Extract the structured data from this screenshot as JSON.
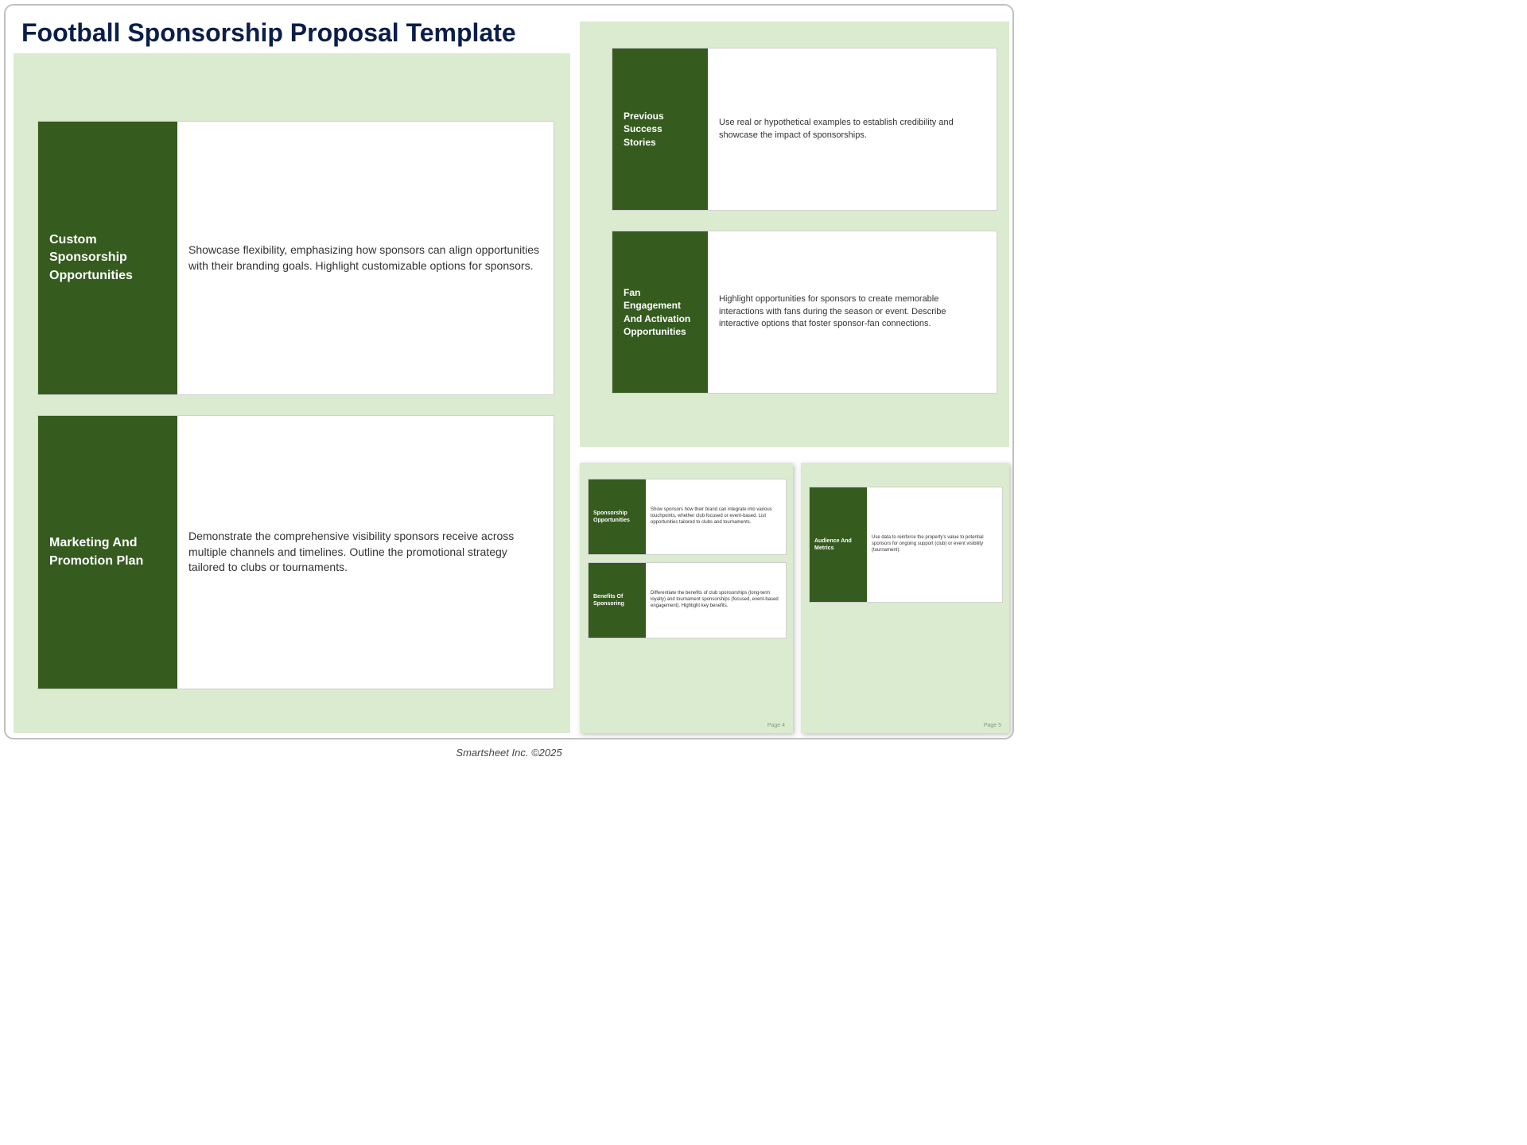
{
  "page_title": "Football Sponsorship Proposal Template",
  "footer": "Smartsheet Inc. ©2025",
  "colors": {
    "panel_bg": "#dbebcf",
    "card_label_bg": "#355b1f",
    "title_color": "#0b1e4a"
  },
  "left_panel": {
    "cards": [
      {
        "title": "Custom Sponsorship Opportunities",
        "body": "Showcase flexibility, emphasizing how sponsors can align opportunities with their branding goals. Highlight customizable options for sponsors."
      },
      {
        "title": "Marketing And Promotion Plan",
        "body": "Demonstrate the comprehensive visibility sponsors receive across multiple channels and timelines. Outline the promotional strategy tailored to clubs or tournaments."
      }
    ]
  },
  "right_upper": {
    "cards": [
      {
        "title": "Previous Success Stories",
        "body": "Use real or hypothetical examples to establish credibility and showcase the impact of sponsorships."
      },
      {
        "title": "Fan Engagement And Activation Opportunities",
        "body": "Highlight opportunities for sponsors to create memorable interactions with fans during the season or event. Describe interactive options that foster sponsor-fan connections."
      }
    ]
  },
  "mini_page_a": {
    "page_number": "Page 4",
    "cards": [
      {
        "title": "Sponsorship Opportunities",
        "body": "Show sponsors how their brand can integrate into various touchpoints, whether club focused or event-based. List opportunities tailored to clubs and tournaments."
      },
      {
        "title": "Benefits Of Sponsoring",
        "body": "Differentiate the benefits of club sponsorships (long-term loyalty) and tournament sponsorships (focused, event-based engagement). Highlight key benefits."
      }
    ]
  },
  "mini_page_b": {
    "page_number": "Page 5",
    "cards": [
      {
        "title": "Audience And Metrics",
        "body": "Use data to reinforce the property's value to potential sponsors for ongoing support (club) or event visibility (tournament)."
      }
    ]
  }
}
